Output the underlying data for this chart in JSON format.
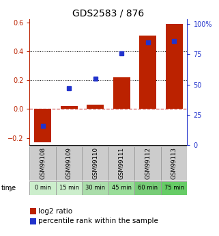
{
  "title": "GDS2583 / 876",
  "samples": [
    "GSM99108",
    "GSM99109",
    "GSM99110",
    "GSM99111",
    "GSM99112",
    "GSM99113"
  ],
  "time_labels": [
    "0 min",
    "15 min",
    "30 min",
    "45 min",
    "60 min",
    "75 min"
  ],
  "log2_ratio": [
    -0.23,
    0.02,
    0.03,
    0.22,
    0.51,
    0.59
  ],
  "percentile_rank_pct": [
    16,
    47,
    55,
    76,
    85,
    86
  ],
  "ylim_left": [
    -0.25,
    0.625
  ],
  "ylim_right": [
    0,
    104.17
  ],
  "yticks_left": [
    -0.2,
    0.0,
    0.2,
    0.4,
    0.6
  ],
  "yticks_right": [
    0,
    25,
    50,
    75,
    100
  ],
  "bar_color": "#bb2200",
  "dot_color": "#2233cc",
  "zero_line_color": "#cc3333",
  "grid_color": "#000000",
  "bg_color": "#ffffff",
  "time_row_colors": [
    "#cceecc",
    "#cceecc",
    "#aaddaa",
    "#99dd99",
    "#77cc77",
    "#66cc66"
  ],
  "sample_row_color": "#cccccc",
  "sample_row_border": "#999999",
  "title_fontsize": 10,
  "tick_fontsize": 7,
  "label_fontsize": 7.5,
  "legend_fontsize": 7.5
}
